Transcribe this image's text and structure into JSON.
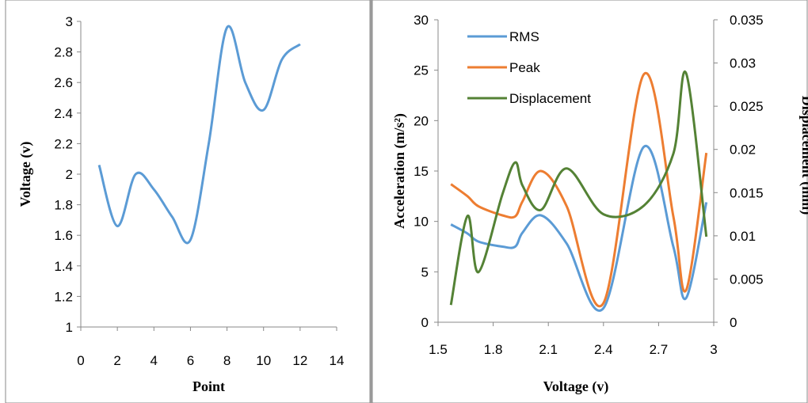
{
  "chart_data": [
    {
      "type": "line",
      "title": "",
      "xlabel": "Point",
      "ylabel": "Voltage (v)",
      "xlim": [
        0,
        14
      ],
      "ylim": [
        1,
        3
      ],
      "x_ticks": [
        "0",
        "2",
        "4",
        "6",
        "8",
        "10",
        "12",
        "14"
      ],
      "y_ticks": [
        "1",
        "1.2",
        "1.4",
        "1.6",
        "1.8",
        "2",
        "2.2",
        "2.4",
        "2.6",
        "2.8",
        "3"
      ],
      "grid": false,
      "series": [
        {
          "name": "",
          "color": "#5b9bd5",
          "x": [
            1,
            2,
            3,
            4,
            5,
            6,
            7,
            8,
            9,
            10,
            11,
            12
          ],
          "y": [
            2.06,
            1.66,
            2.0,
            1.9,
            1.72,
            1.57,
            2.2,
            2.96,
            2.6,
            2.42,
            2.75,
            2.85
          ]
        }
      ]
    },
    {
      "type": "line",
      "title": "",
      "xlabel": "Voltage (v)",
      "ylabel": "Acceleration (m/s²)",
      "y2label": "Displacement (mm)",
      "xlim": [
        1.5,
        3
      ],
      "ylim": [
        0,
        30
      ],
      "y2lim": [
        0,
        0.035
      ],
      "x_ticks": [
        "1.5",
        "1.8",
        "2.1",
        "2.4",
        "2.7",
        "3"
      ],
      "y_ticks": [
        "0",
        "5",
        "10",
        "15",
        "20",
        "25",
        "30"
      ],
      "y2_ticks": [
        "0",
        "0.005",
        "0.01",
        "0.015",
        "0.02",
        "0.025",
        "0.03",
        "0.035"
      ],
      "grid": false,
      "legend_position": "top-left",
      "series": [
        {
          "name": "RMS",
          "axis": "left",
          "color": "#5b9bd5",
          "x": [
            1.57,
            1.66,
            1.72,
            1.85,
            1.92,
            1.96,
            2.06,
            2.2,
            2.4,
            2.62,
            2.78,
            2.85,
            2.96
          ],
          "y": [
            9.7,
            8.8,
            8.0,
            7.5,
            7.5,
            8.9,
            10.6,
            7.8,
            1.4,
            17.4,
            7.5,
            2.4,
            11.9
          ]
        },
        {
          "name": "Peak",
          "axis": "left",
          "color": "#ed7d31",
          "x": [
            1.57,
            1.66,
            1.72,
            1.85,
            1.92,
            1.96,
            2.06,
            2.2,
            2.4,
            2.62,
            2.78,
            2.85,
            2.96
          ],
          "y": [
            13.7,
            12.5,
            11.5,
            10.6,
            10.5,
            12.0,
            15.0,
            11.5,
            1.9,
            24.6,
            10.5,
            3.2,
            16.8
          ]
        },
        {
          "name": "Displacement",
          "axis": "right",
          "color": "#548235",
          "x": [
            1.57,
            1.66,
            1.72,
            1.85,
            1.92,
            1.96,
            2.06,
            2.2,
            2.4,
            2.62,
            2.78,
            2.85,
            2.96
          ],
          "y": [
            0.002,
            0.0123,
            0.0058,
            0.0148,
            0.0185,
            0.0158,
            0.013,
            0.0178,
            0.0125,
            0.0135,
            0.0195,
            0.0288,
            0.0099
          ]
        }
      ]
    }
  ]
}
